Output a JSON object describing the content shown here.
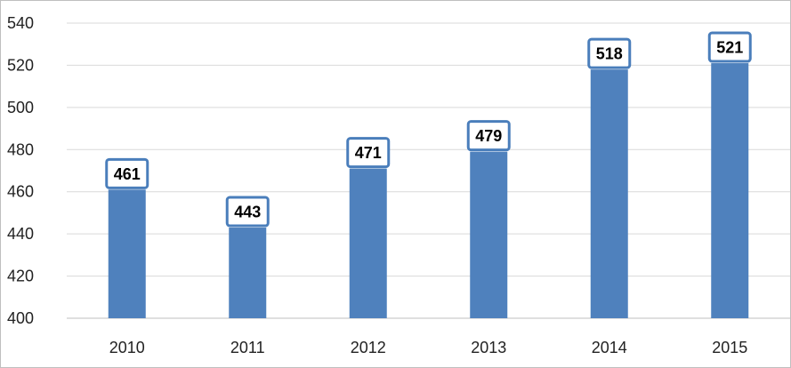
{
  "chart_data": {
    "type": "bar",
    "title": "",
    "xlabel": "",
    "ylabel": "",
    "categories": [
      "2010",
      "2011",
      "2012",
      "2013",
      "2014",
      "2015"
    ],
    "values": [
      461,
      443,
      471,
      479,
      518,
      521
    ],
    "data_labels": [
      "461",
      "443",
      "471",
      "479",
      "518",
      "521"
    ],
    "ylim": [
      400,
      540
    ],
    "yticks": [
      400,
      420,
      440,
      460,
      480,
      500,
      520,
      540
    ],
    "ytick_labels": [
      "400",
      "420",
      "440",
      "460",
      "480",
      "500",
      "520",
      "540"
    ],
    "grid": true,
    "legend": "none",
    "colors": {
      "bar": "#4f81bd",
      "label_border": "#4a7ebb",
      "grid": "#d9d9d9"
    }
  }
}
